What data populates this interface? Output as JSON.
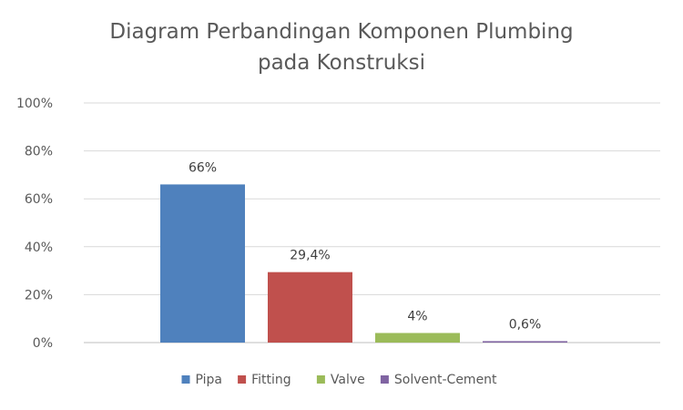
{
  "chart_data": {
    "type": "bar",
    "title_line1": "Diagram Perbandingan Komponen Plumbing",
    "title_line2": "pada Konstruksi",
    "xlabel": "",
    "ylabel": "",
    "ylim": [
      0,
      100
    ],
    "y_ticks": [
      0,
      20,
      40,
      60,
      80,
      100
    ],
    "y_tick_labels": [
      "0%",
      "20%",
      "40%",
      "60%",
      "80%",
      "100%"
    ],
    "grid": true,
    "legend_position": "bottom",
    "series": [
      {
        "name": "Pipa",
        "value": 66,
        "label": "66%",
        "color": "#4F81BD"
      },
      {
        "name": "Fitting",
        "value": 29.4,
        "label": "29,4%",
        "color": "#C0504D"
      },
      {
        "name": "Valve",
        "value": 4,
        "label": "4%",
        "color": "#9BBB59"
      },
      {
        "name": "Solvent-Cement",
        "value": 0.6,
        "label": "0,6%",
        "color": "#8064A2"
      }
    ]
  }
}
